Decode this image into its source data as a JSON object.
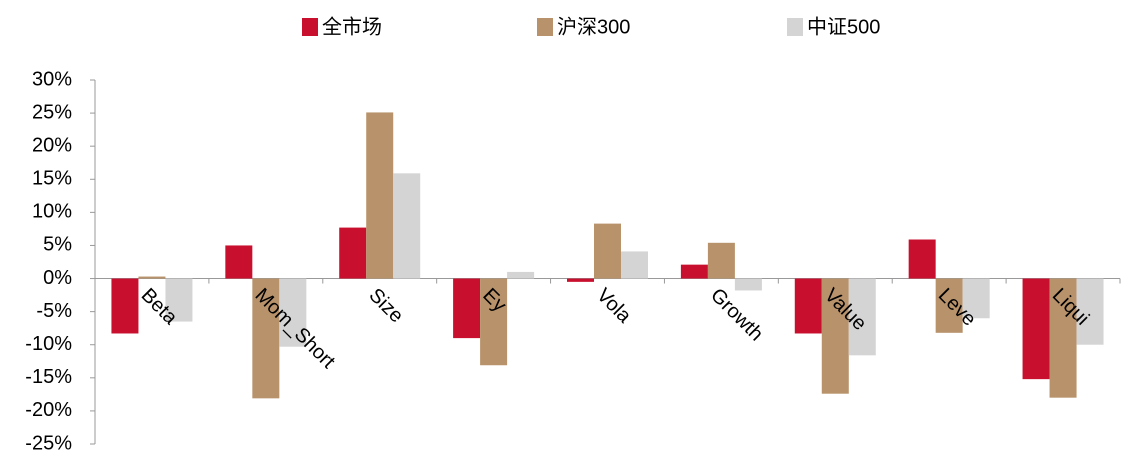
{
  "chart_data": {
    "type": "bar",
    "categories": [
      "Beta",
      "Mom_Short",
      "Size",
      "Ey",
      "Vola",
      "Growth",
      "Value",
      "Leve",
      "Liqui"
    ],
    "series": [
      {
        "name": "全市场",
        "color": "#c8102e",
        "values": [
          -8.3,
          5.0,
          7.7,
          -9.0,
          -0.5,
          2.1,
          -8.3,
          5.9,
          -15.2
        ]
      },
      {
        "name": "沪深300",
        "color": "#b8926a",
        "values": [
          0.3,
          -18.1,
          25.1,
          -13.1,
          8.3,
          5.4,
          -17.4,
          -8.2,
          -18.0
        ]
      },
      {
        "name": "中证500",
        "color": "#d4d4d4",
        "values": [
          -6.5,
          -10.3,
          15.9,
          1.0,
          4.1,
          -1.8,
          -11.6,
          -6.0,
          -10.0
        ]
      }
    ],
    "ylim": [
      -25,
      30
    ],
    "yticks": [
      {
        "value": -25,
        "label": "-25%"
      },
      {
        "value": -20,
        "label": "-20%"
      },
      {
        "value": -15,
        "label": "-15%"
      },
      {
        "value": -10,
        "label": "-10%"
      },
      {
        "value": -5,
        "label": "-5%"
      },
      {
        "value": 0,
        "label": "0%"
      },
      {
        "value": 5,
        "label": "5%"
      },
      {
        "value": 10,
        "label": "10%"
      },
      {
        "value": 15,
        "label": "15%"
      },
      {
        "value": 20,
        "label": "20%"
      },
      {
        "value": 25,
        "label": "25%"
      },
      {
        "value": 30,
        "label": "30%"
      }
    ]
  }
}
